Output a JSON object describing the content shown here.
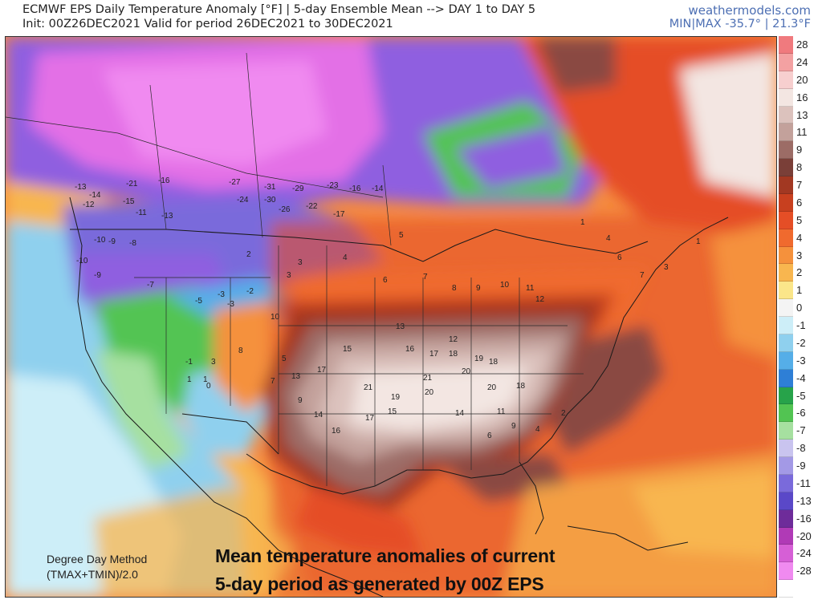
{
  "header": {
    "title": "ECMWF EPS Daily Temperature Anomaly [°F] | 5-day Ensemble Mean --> DAY 1 to DAY 5",
    "subtitle": "Init: 00Z26DEC2021 Valid for period 26DEC2021 to 30DEC2021",
    "site": "weathermodels.com",
    "minmax": "MIN|MAX -35.7° | 21.3°F"
  },
  "map": {
    "regions": {
      "cold_core": "Western Canada / northern Rockies",
      "warm_core": "Southern Plains / Gulf Coast"
    },
    "colors": {
      "ocean_warm": "#f58a3e",
      "pacific": "#8fd0ee",
      "deep_cold": "#e36fe6",
      "purple": "#8f5ee0",
      "green": "#52c452",
      "brown_warm": "#caa7a0",
      "pale_warm": "#f3e6e2",
      "dark_warm": "#8a4a42"
    },
    "anomaly_labels": [
      {
        "v": "-13"
      },
      {
        "v": "-14"
      },
      {
        "v": "-21"
      },
      {
        "v": "-16"
      },
      {
        "v": "-27"
      },
      {
        "v": "-31"
      },
      {
        "v": "-29"
      },
      {
        "v": "-23"
      },
      {
        "v": "-16"
      },
      {
        "v": "-14"
      },
      {
        "v": "-12"
      },
      {
        "v": "-15"
      },
      {
        "v": "-11"
      },
      {
        "v": "-24"
      },
      {
        "v": "-30"
      },
      {
        "v": "-26"
      },
      {
        "v": "-22"
      },
      {
        "v": "-17"
      },
      {
        "v": "-10"
      },
      {
        "v": "-9"
      },
      {
        "v": "-8"
      },
      {
        "v": "-13"
      },
      {
        "v": "-10"
      },
      {
        "v": "-9"
      },
      {
        "v": "-7"
      },
      {
        "v": "-5"
      },
      {
        "v": "-3"
      },
      {
        "v": "-2"
      },
      {
        "v": "0"
      },
      {
        "v": "1"
      },
      {
        "v": "2"
      },
      {
        "v": "3"
      },
      {
        "v": "4"
      },
      {
        "v": "5"
      },
      {
        "v": "6"
      },
      {
        "v": "7"
      },
      {
        "v": "8"
      },
      {
        "v": "9"
      },
      {
        "v": "10"
      },
      {
        "v": "11"
      },
      {
        "v": "12"
      },
      {
        "v": "13"
      },
      {
        "v": "15"
      },
      {
        "v": "16"
      },
      {
        "v": "17"
      },
      {
        "v": "18"
      },
      {
        "v": "19"
      },
      {
        "v": "20"
      },
      {
        "v": "21"
      },
      {
        "v": "18"
      },
      {
        "v": "19"
      },
      {
        "v": "20"
      },
      {
        "v": "17"
      },
      {
        "v": "15"
      },
      {
        "v": "12"
      },
      {
        "v": "14"
      },
      {
        "v": "16"
      },
      {
        "v": "9"
      },
      {
        "v": "7"
      },
      {
        "v": "5"
      },
      {
        "v": "3"
      },
      {
        "v": "-3"
      },
      {
        "v": "-1"
      },
      {
        "v": "1"
      },
      {
        "v": "3"
      },
      {
        "v": "8"
      },
      {
        "v": "10"
      },
      {
        "v": "13"
      },
      {
        "v": "17"
      },
      {
        "v": "21"
      },
      {
        "v": "20"
      },
      {
        "v": "18"
      },
      {
        "v": "14"
      },
      {
        "v": "11"
      },
      {
        "v": "9"
      },
      {
        "v": "6"
      },
      {
        "v": "4"
      },
      {
        "v": "2"
      },
      {
        "v": "1"
      },
      {
        "v": "4"
      },
      {
        "v": "6"
      },
      {
        "v": "7"
      },
      {
        "v": "3"
      },
      {
        "v": "1"
      }
    ]
  },
  "legend": {
    "items": [
      {
        "label": "28",
        "color": "#f07a7e"
      },
      {
        "label": "24",
        "color": "#f3a1a2"
      },
      {
        "label": "20",
        "color": "#f7cfcf"
      },
      {
        "label": "16",
        "color": "#f3e6e2"
      },
      {
        "label": "13",
        "color": "#dcc2bd"
      },
      {
        "label": "11",
        "color": "#c3a19b"
      },
      {
        "label": "9",
        "color": "#9c6c66"
      },
      {
        "label": "8",
        "color": "#7a3f38"
      },
      {
        "label": "7",
        "color": "#a23822"
      },
      {
        "label": "6",
        "color": "#c8401f"
      },
      {
        "label": "5",
        "color": "#e54e26"
      },
      {
        "label": "4",
        "color": "#f06a2e"
      },
      {
        "label": "3",
        "color": "#f5913c"
      },
      {
        "label": "2",
        "color": "#f8b64f"
      },
      {
        "label": "1",
        "color": "#fbe68a"
      },
      {
        "label": "0",
        "color": "#f4f4f4"
      },
      {
        "label": "-1",
        "color": "#cdeef8"
      },
      {
        "label": "-2",
        "color": "#8fd0ee"
      },
      {
        "label": "-3",
        "color": "#55aee8"
      },
      {
        "label": "-4",
        "color": "#2e7fd6"
      },
      {
        "label": "-5",
        "color": "#27a34a"
      },
      {
        "label": "-6",
        "color": "#52c452"
      },
      {
        "label": "-7",
        "color": "#a6e0a0"
      },
      {
        "label": "-8",
        "color": "#c9c4ef"
      },
      {
        "label": "-9",
        "color": "#a399e6"
      },
      {
        "label": "-11",
        "color": "#7a6adb"
      },
      {
        "label": "-13",
        "color": "#5a48c8"
      },
      {
        "label": "-16",
        "color": "#6e2c9a"
      },
      {
        "label": "-20",
        "color": "#b03ab6"
      },
      {
        "label": "-24",
        "color": "#d65fd6"
      },
      {
        "label": "-28",
        "color": "#f08af0"
      },
      {
        "label": "",
        "color": "#ffffff"
      }
    ]
  },
  "footer": {
    "method_line1": "Degree Day Method",
    "method_line2": "(TMAX+TMIN)/2.0",
    "caption_line1": "Mean temperature anomalies of current",
    "caption_line2": "5-day period as generated by 00Z EPS"
  }
}
